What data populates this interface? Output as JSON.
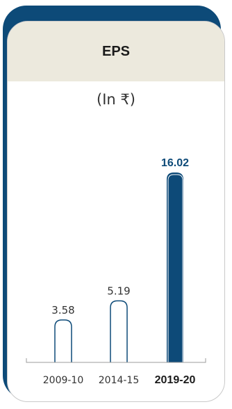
{
  "card": {
    "title": "EPS",
    "unit": "(In ₹)"
  },
  "chart_data": {
    "type": "bar",
    "categories": [
      "2009-10",
      "2014-15",
      "2019-20"
    ],
    "values": [
      3.58,
      5.19,
      16.02
    ],
    "value_labels": [
      "3.58",
      "5.19",
      "16.02"
    ],
    "highlight_index": 2,
    "title": "EPS",
    "unit": "(In ₹)",
    "ylim": [
      0,
      16.02
    ],
    "colors": {
      "accent": "#0d4a78",
      "outline": "#0d4a78",
      "header": "#ece9dd"
    }
  }
}
